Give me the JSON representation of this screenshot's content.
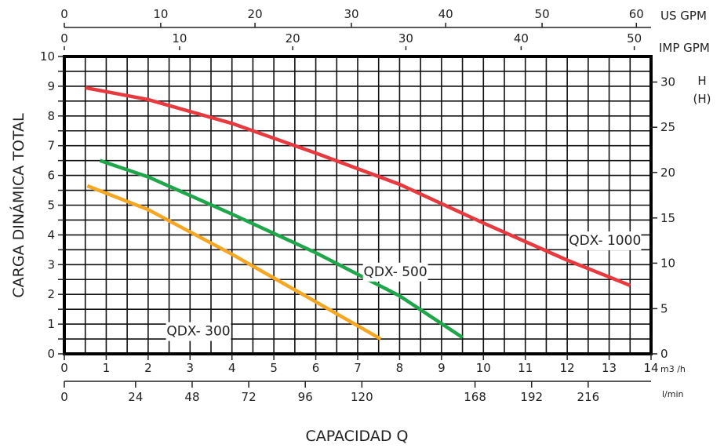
{
  "chart_data": {
    "type": "line",
    "xlabel": "CAPACIDAD Q",
    "ylabel": "CARGA DINÁMICA TOTAL",
    "xlim": [
      0,
      14
    ],
    "ylim": [
      0,
      10
    ],
    "grid": true,
    "axes": {
      "bottom_m3h": {
        "unit": "m3 /h",
        "ticks": [
          "0",
          "1",
          "2",
          "3",
          "4",
          "5",
          "6",
          "7",
          "8",
          "9",
          "10",
          "11",
          "12",
          "13",
          "14"
        ]
      },
      "bottom_lmin": {
        "unit": "l/min",
        "ticks": [
          "0",
          "24",
          "48",
          "72",
          "96",
          "120",
          "168",
          "192",
          "216"
        ],
        "tick_values_m3h": [
          0,
          1.7,
          3.05,
          4.4,
          5.75,
          7.1,
          9.8,
          11.15,
          12.5
        ]
      },
      "top_us_gpm": {
        "unit": "US GPM",
        "ticks": [
          "0",
          "10",
          "20",
          "30",
          "40",
          "50",
          "60"
        ],
        "tick_values_m3h": [
          0,
          2.3,
          4.55,
          6.85,
          9.1,
          11.4,
          13.65
        ]
      },
      "top_imp_gpm": {
        "unit": "IMP GPM",
        "ticks": [
          "0",
          "10",
          "20",
          "30",
          "40",
          "50"
        ],
        "tick_values_m3h": [
          0,
          2.75,
          5.45,
          8.15,
          10.9,
          13.6
        ]
      },
      "left_m": {
        "ticks": [
          "0",
          "1",
          "2",
          "3",
          "4",
          "5",
          "6",
          "7",
          "8",
          "9",
          "10"
        ]
      },
      "right_ft": {
        "unit": "H",
        "unit_sub": "(H)",
        "ticks": [
          "0",
          "5",
          "10",
          "15",
          "20",
          "25",
          "30"
        ],
        "tick_values_m": [
          0,
          1.52,
          3.05,
          4.57,
          6.1,
          7.62,
          9.14
        ]
      }
    },
    "series": [
      {
        "name": "QDX- 1000",
        "color": "#e8393f",
        "label_at": [
          12.9,
          3.8
        ],
        "x": [
          0.5,
          2,
          4,
          6,
          8,
          10,
          12,
          13.5
        ],
        "y": [
          8.95,
          8.55,
          7.75,
          6.75,
          5.7,
          4.4,
          3.15,
          2.3
        ]
      },
      {
        "name": "QDX- 500",
        "color": "#1fa64b",
        "label_at": [
          7.9,
          2.75
        ],
        "x": [
          0.85,
          2,
          4,
          6,
          8,
          9.5
        ],
        "y": [
          6.5,
          5.95,
          4.7,
          3.4,
          1.95,
          0.55
        ]
      },
      {
        "name": "QDX- 300",
        "color": "#f5a623",
        "label_at": [
          3.2,
          0.75
        ],
        "x": [
          0.55,
          2,
          4,
          6,
          7.55
        ],
        "y": [
          5.65,
          4.85,
          3.35,
          1.75,
          0.5
        ]
      }
    ]
  }
}
